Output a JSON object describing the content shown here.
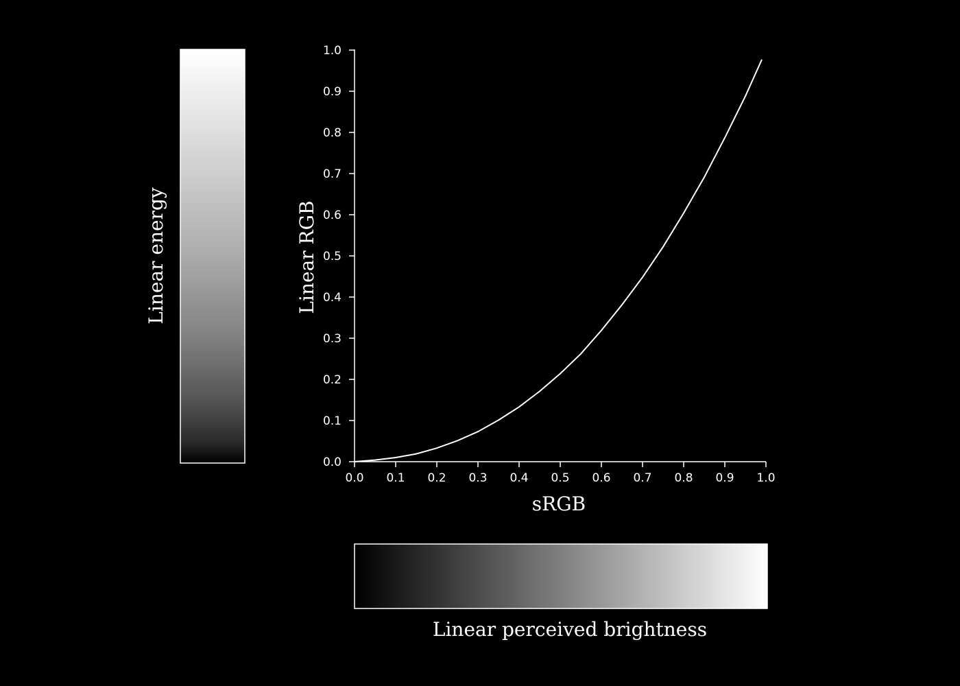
{
  "colors": {
    "background": "#000000",
    "foreground": "#ffffff"
  },
  "left_bar": {
    "label": "Linear energy"
  },
  "bottom_bar": {
    "label": "Linear perceived brightness"
  },
  "chart_data": {
    "type": "line",
    "title": "",
    "xlabel": "sRGB",
    "ylabel": "Linear RGB",
    "xlim": [
      0.0,
      1.0
    ],
    "ylim": [
      0.0,
      1.0
    ],
    "xticks": [
      "0.0",
      "0.1",
      "0.2",
      "0.3",
      "0.4",
      "0.5",
      "0.6",
      "0.7",
      "0.8",
      "0.9",
      "1.0"
    ],
    "yticks": [
      "0.0",
      "0.1",
      "0.2",
      "0.3",
      "0.4",
      "0.5",
      "0.6",
      "0.7",
      "0.8",
      "0.9",
      "1.0"
    ],
    "grid": false,
    "series": [
      {
        "x": [
          0.0,
          0.05,
          0.1,
          0.15,
          0.2,
          0.25,
          0.3,
          0.35,
          0.4,
          0.45,
          0.5,
          0.55,
          0.6,
          0.65,
          0.7,
          0.75,
          0.8,
          0.85,
          0.9,
          0.95,
          0.99
        ],
        "y": [
          0.0,
          0.004,
          0.01,
          0.019,
          0.033,
          0.051,
          0.073,
          0.101,
          0.133,
          0.171,
          0.214,
          0.262,
          0.319,
          0.381,
          0.448,
          0.522,
          0.604,
          0.691,
          0.787,
          0.888,
          0.977
        ]
      }
    ]
  }
}
